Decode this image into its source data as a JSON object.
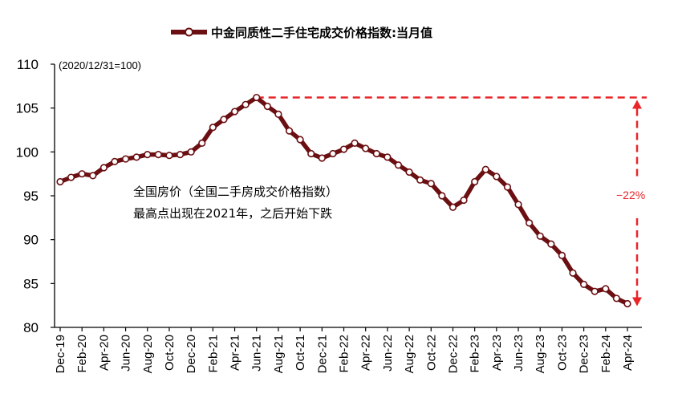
{
  "chart_data": {
    "type": "line",
    "legend": {
      "label": "中金同质性二手住宅成交价格指数:当月值",
      "position": "top-center"
    },
    "note": "(2020/12/31=100)",
    "ylim": [
      80,
      110
    ],
    "yticks": [
      80,
      85,
      90,
      95,
      100,
      105,
      110
    ],
    "x_tick_labels": [
      "Dec-19",
      "Feb-20",
      "Apr-20",
      "Jun-20",
      "Aug-20",
      "Oct-20",
      "Dec-20",
      "Feb-21",
      "Apr-21",
      "Jun-21",
      "Aug-21",
      "Oct-21",
      "Dec-21",
      "Feb-22",
      "Apr-22",
      "Jun-22",
      "Aug-22",
      "Oct-22",
      "Dec-22",
      "Feb-23",
      "Apr-23",
      "Jun-23",
      "Aug-23",
      "Oct-23",
      "Dec-23",
      "Feb-24",
      "Apr-24"
    ],
    "grid": false,
    "series": [
      {
        "name": "中金同质性二手住宅成交价格指数:当月值",
        "color": "#6b0f12",
        "x": [
          "Dec-19",
          "Jan-20",
          "Feb-20",
          "Mar-20",
          "Apr-20",
          "May-20",
          "Jun-20",
          "Jul-20",
          "Aug-20",
          "Sep-20",
          "Oct-20",
          "Nov-20",
          "Dec-20",
          "Jan-21",
          "Feb-21",
          "Mar-21",
          "Apr-21",
          "May-21",
          "Jun-21",
          "Jul-21",
          "Aug-21",
          "Sep-21",
          "Oct-21",
          "Nov-21",
          "Dec-21",
          "Jan-22",
          "Feb-22",
          "Mar-22",
          "Apr-22",
          "May-22",
          "Jun-22",
          "Jul-22",
          "Aug-22",
          "Sep-22",
          "Oct-22",
          "Nov-22",
          "Dec-22",
          "Jan-23",
          "Feb-23",
          "Mar-23",
          "Apr-23",
          "May-23",
          "Jun-23",
          "Jul-23",
          "Aug-23",
          "Sep-23",
          "Oct-23",
          "Nov-23",
          "Dec-23",
          "Jan-24",
          "Feb-24",
          "Mar-24",
          "Apr-24"
        ],
        "values": [
          96.6,
          97.1,
          97.5,
          97.3,
          98.2,
          98.9,
          99.2,
          99.4,
          99.7,
          99.7,
          99.6,
          99.7,
          100.0,
          101.0,
          102.8,
          103.7,
          104.6,
          105.4,
          106.2,
          105.2,
          104.3,
          102.4,
          101.4,
          99.8,
          99.3,
          99.8,
          100.3,
          101.0,
          100.4,
          99.8,
          99.4,
          98.5,
          97.7,
          96.8,
          96.4,
          95.0,
          93.7,
          94.5,
          96.6,
          98.0,
          97.2,
          96.0,
          94.0,
          91.9,
          90.4,
          89.5,
          88.2,
          86.2,
          84.9,
          84.1,
          84.4,
          83.3,
          82.7
        ]
      }
    ],
    "annotation": {
      "line1": "全国房价（全国二手房成交价格指数）",
      "line2": "最高点出现在2021年，之后开始下跌",
      "change_label": "−22%"
    },
    "colors": {
      "line": "#6b0f12",
      "marker_fill": "#ffffff",
      "reference": "#e8262a"
    }
  }
}
